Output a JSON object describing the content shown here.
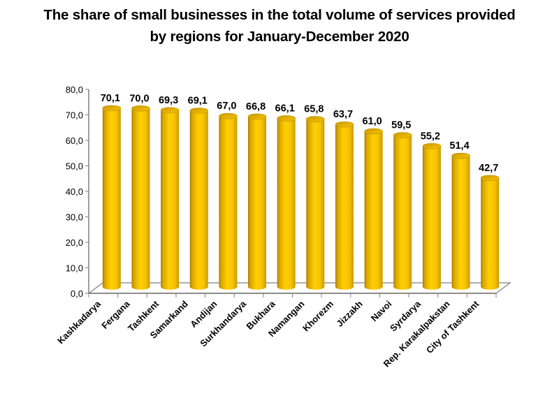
{
  "chart_data": {
    "type": "bar",
    "style": "3d-cylinder",
    "title_lines": [
      "The share of small businesses in the total volume of services provided",
      "by regions for January-December 2020"
    ],
    "title": "The share of small businesses in the total volume of services provided by regions for January-December 2020",
    "xlabel": "",
    "ylabel": "",
    "ylim": [
      0,
      80
    ],
    "yticks": [
      0,
      10,
      20,
      30,
      40,
      50,
      60,
      70,
      80
    ],
    "ytick_labels": [
      "0,0",
      "10,0",
      "20,0",
      "30,0",
      "40,0",
      "50,0",
      "60,0",
      "70,0",
      "80,0"
    ],
    "grid": false,
    "legend": "none",
    "categories": [
      "Kashkadarya",
      "Fergana",
      "Tashkent",
      "Samarkand",
      "Andijan",
      "Surkhandarya",
      "Bukhara",
      "Namangan",
      "Khorezm",
      "Jizzakh",
      "Navoi",
      "Syrdarya",
      "Rep. Karakalpakstan",
      "City of Tashkent"
    ],
    "values": [
      70.1,
      70.0,
      69.3,
      69.1,
      67.0,
      66.8,
      66.1,
      65.8,
      63.7,
      61.0,
      59.5,
      55.2,
      51.4,
      42.7
    ],
    "value_labels": [
      "70,1",
      "70,0",
      "69,3",
      "69,1",
      "67,0",
      "66,8",
      "66,1",
      "65,8",
      "63,7",
      "61,0",
      "59,5",
      "55,2",
      "51,4",
      "42,7"
    ],
    "colors": {
      "bar": "#FFCC00",
      "bar_dark": "#B08000",
      "bar_top": "#E3B000",
      "axis": "#808080"
    }
  }
}
